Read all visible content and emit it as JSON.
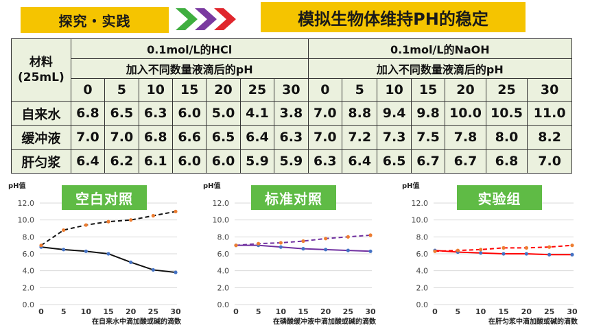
{
  "header": {
    "tag": "探究・实践",
    "title": "模拟生物体维持PH的稳定",
    "arrow_colors": [
      "#3fae3f",
      "#7a3aa0",
      "#e0262d"
    ]
  },
  "table": {
    "material_header": "材料\n(25mL)",
    "groups": [
      {
        "reagent": "0.1mol/L的HCl",
        "subtitle": "加入不同数量液滴后的pH"
      },
      {
        "reagent": "0.1mol/L的NaOH",
        "subtitle": "加入不同数量液滴后的pH"
      }
    ],
    "drops": [
      "0",
      "5",
      "10",
      "15",
      "20",
      "25",
      "30"
    ],
    "rows": [
      {
        "material": "自来水",
        "hcl": [
          "6.8",
          "6.5",
          "6.3",
          "6.0",
          "5.0",
          "4.1",
          "3.8"
        ],
        "naoh": [
          "7.0",
          "8.8",
          "9.4",
          "9.8",
          "10.0",
          "10.5",
          "11.0"
        ]
      },
      {
        "material": "缓冲液",
        "hcl": [
          "7.0",
          "7.0",
          "6.8",
          "6.6",
          "6.5",
          "6.4",
          "6.3"
        ],
        "naoh": [
          "7.0",
          "7.2",
          "7.3",
          "7.5",
          "7.8",
          "8.0",
          "8.2"
        ]
      },
      {
        "material": "肝匀浆",
        "hcl": [
          "6.4",
          "6.2",
          "6.1",
          "6.0",
          "6.0",
          "5.9",
          "5.9"
        ],
        "naoh": [
          "6.3",
          "6.4",
          "6.5",
          "6.7",
          "6.7",
          "6.8",
          "7.0"
        ]
      }
    ]
  },
  "chart_data": [
    {
      "type": "line",
      "label": "空白对照",
      "ylabel": "pH值",
      "xlabel": "在自来水中滴加酸或碱的滴数",
      "x": [
        0,
        5,
        10,
        15,
        20,
        25,
        30
      ],
      "ylim": [
        0,
        12
      ],
      "yticks": [
        "0.0",
        "2.0",
        "4.0",
        "6.0",
        "8.0",
        "10.0",
        "12.0"
      ],
      "series": [
        {
          "values": [
            6.8,
            6.5,
            6.3,
            6.0,
            5.0,
            4.1,
            3.8
          ],
          "color": "#111111",
          "marker": "#4472c4",
          "dashed": false
        },
        {
          "values": [
            7.0,
            8.8,
            9.4,
            9.8,
            10.0,
            10.5,
            11.0
          ],
          "color": "#111111",
          "marker": "#ed7d31",
          "dashed": true
        }
      ]
    },
    {
      "type": "line",
      "label": "标准对照",
      "ylabel": "pH值",
      "xlabel": "在磷酸缓冲液中滴加酸或碱的滴数",
      "x": [
        0,
        5,
        10,
        15,
        20,
        25,
        30
      ],
      "ylim": [
        0,
        12
      ],
      "yticks": [
        "0.0",
        "2.0",
        "4.0",
        "6.0",
        "8.0",
        "10.0",
        "12.0"
      ],
      "series": [
        {
          "values": [
            7.0,
            7.0,
            6.8,
            6.6,
            6.5,
            6.4,
            6.3
          ],
          "color": "#7030a0",
          "marker": "#4472c4",
          "dashed": false
        },
        {
          "values": [
            7.0,
            7.2,
            7.3,
            7.5,
            7.8,
            8.0,
            8.2
          ],
          "color": "#7030a0",
          "marker": "#ed7d31",
          "dashed": true
        }
      ]
    },
    {
      "type": "line",
      "label": "实验组",
      "ylabel": "pH值",
      "xlabel": "在肝匀浆中滴加酸或碱的滴数",
      "x": [
        0,
        5,
        10,
        15,
        20,
        25,
        30
      ],
      "ylim": [
        0,
        12
      ],
      "yticks": [
        "0.0",
        "2.0",
        "4.0",
        "6.0",
        "8.0",
        "10.0",
        "12.0"
      ],
      "series": [
        {
          "values": [
            6.4,
            6.2,
            6.1,
            6.0,
            6.0,
            5.9,
            5.9
          ],
          "color": "#ff0000",
          "marker": "#4472c4",
          "dashed": false
        },
        {
          "values": [
            6.3,
            6.4,
            6.5,
            6.7,
            6.7,
            6.8,
            7.0
          ],
          "color": "#ff0000",
          "marker": "#ed7d31",
          "dashed": true
        }
      ]
    }
  ],
  "colors": {
    "accent_yellow": "#f5c400",
    "label_green": "#5fbb45",
    "table_bg": "#ebf1de"
  }
}
